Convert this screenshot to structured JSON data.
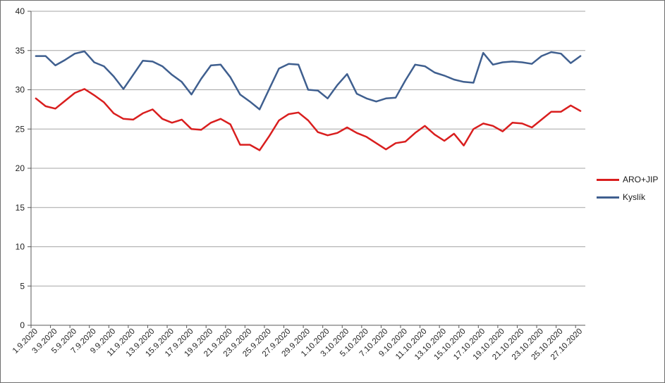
{
  "figure": {
    "background": "#ffffff",
    "border_color": "#6e6e6e",
    "gridline_color": "#a6a6a6",
    "axis_color": "#595959",
    "tick_label_color": "#1f1f1f"
  },
  "chart_data": {
    "type": "line",
    "title": "",
    "xlabel": "",
    "ylabel": "",
    "ylim": [
      0,
      40
    ],
    "ytick_step": 5,
    "grid": true,
    "legend_position": "right",
    "label_every": 2,
    "x": [
      "1.9.2020",
      "2.9.2020",
      "3.9.2020",
      "4.9.2020",
      "5.9.2020",
      "6.9.2020",
      "7.9.2020",
      "8.9.2020",
      "9.9.2020",
      "10.9.2020",
      "11.9.2020",
      "12.9.2020",
      "13.9.2020",
      "14.9.2020",
      "15.9.2020",
      "16.9.2020",
      "17.9.2020",
      "18.9.2020",
      "19.9.2020",
      "20.9.2020",
      "21.9.2020",
      "22.9.2020",
      "23.9.2020",
      "24.9.2020",
      "25.9.2020",
      "26.9.2020",
      "27.9.2020",
      "28.9.2020",
      "29.9.2020",
      "30.9.2020",
      "1.10.2020",
      "2.10.2020",
      "3.10.2020",
      "4.10.2020",
      "5.10.2020",
      "6.10.2020",
      "7.10.2020",
      "8.10.2020",
      "9.10.2020",
      "10.10.2020",
      "11.10.2020",
      "12.10.2020",
      "13.10.2020",
      "14.10.2020",
      "15.10.2020",
      "16.10.2020",
      "17.10.2020",
      "18.10.2020",
      "19.10.2020",
      "20.10.2020",
      "21.10.2020",
      "22.10.2020",
      "23.10.2020",
      "24.10.2020",
      "25.10.2020",
      "26.10.2020",
      "27.10.2020"
    ],
    "series": [
      {
        "name": "ARO+JIP",
        "color": "#d91e1e",
        "values": [
          28.9,
          27.9,
          27.6,
          28.6,
          29.6,
          30.1,
          29.3,
          28.4,
          27.0,
          26.3,
          26.2,
          27.0,
          27.5,
          26.3,
          25.8,
          26.2,
          25.0,
          24.9,
          25.8,
          26.3,
          25.6,
          23.0,
          23.0,
          22.3,
          24.1,
          26.1,
          26.9,
          27.1,
          26.1,
          24.6,
          24.2,
          24.5,
          25.2,
          24.5,
          24.0,
          23.2,
          22.4,
          23.2,
          23.4,
          24.5,
          25.4,
          24.3,
          23.5,
          24.4,
          22.9,
          25.0,
          25.7,
          25.4,
          24.7,
          25.8,
          25.7,
          25.2,
          26.2,
          27.2,
          27.2,
          28.0,
          27.3
        ]
      },
      {
        "name": "Kyslík",
        "color": "#3f5f8f",
        "values": [
          34.3,
          34.3,
          33.1,
          33.8,
          34.6,
          34.9,
          33.5,
          33.0,
          31.7,
          30.1,
          31.9,
          33.7,
          33.6,
          33.0,
          31.9,
          31.0,
          29.4,
          31.4,
          33.1,
          33.2,
          31.6,
          29.4,
          28.5,
          27.5,
          30.1,
          32.7,
          33.3,
          33.2,
          30.0,
          29.9,
          28.9,
          30.6,
          32.0,
          29.5,
          28.9,
          28.5,
          28.9,
          29.0,
          31.2,
          33.2,
          33.0,
          32.2,
          31.8,
          31.3,
          31.0,
          30.9,
          34.7,
          33.2,
          33.5,
          33.6,
          33.5,
          33.3,
          34.3,
          34.8,
          34.6,
          33.4,
          34.3
        ]
      }
    ]
  },
  "legend": {
    "items": [
      {
        "label": "ARO+JIP",
        "color": "#d91e1e"
      },
      {
        "label": "Kyslík",
        "color": "#3f5f8f"
      }
    ]
  }
}
